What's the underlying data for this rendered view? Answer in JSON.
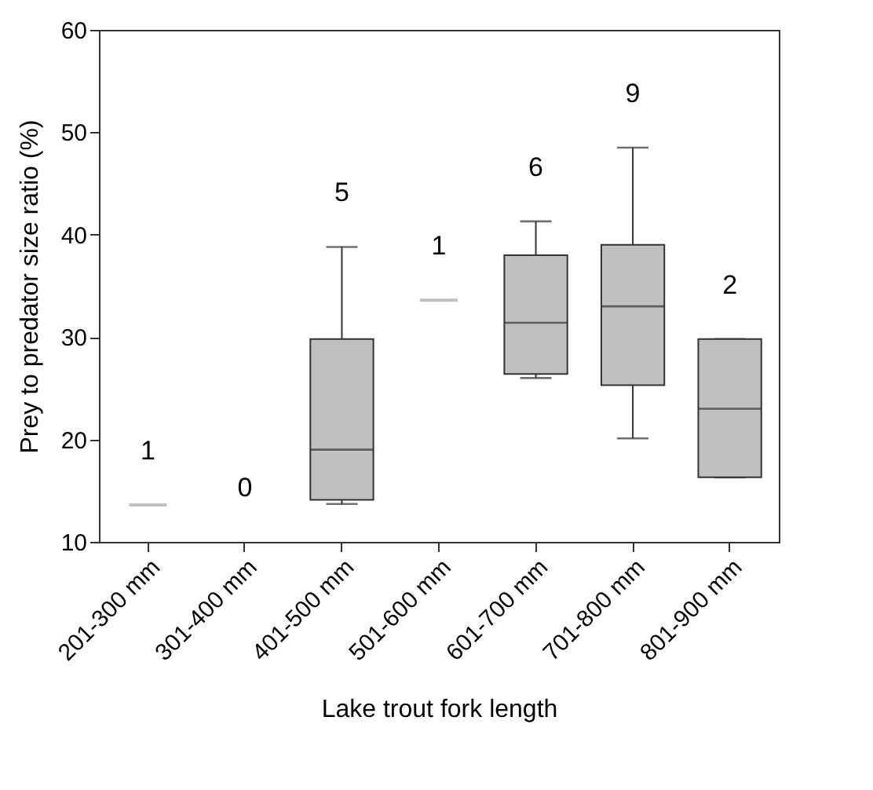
{
  "chart_data": {
    "type": "box",
    "xlabel": "Lake trout fork length",
    "ylabel": "Prey to predator size ratio (%)",
    "categories": [
      "201-300 mm",
      "301-400 mm",
      "401-500 mm",
      "501-600 mm",
      "601-700 mm",
      "701-800 mm",
      "801-900 mm"
    ],
    "boxes": [
      {
        "low": 13.6,
        "q1": 13.6,
        "median": 13.6,
        "q3": 13.6,
        "high": 13.6
      },
      null,
      {
        "low": 13.7,
        "q1": 14.1,
        "median": 19,
        "q3": 29.8,
        "high": 38.8
      },
      {
        "low": 33.6,
        "q1": 33.6,
        "median": 33.6,
        "q3": 33.6,
        "high": 33.6
      },
      {
        "low": 26,
        "q1": 26.4,
        "median": 31.4,
        "q3": 38,
        "high": 41.3
      },
      {
        "low": 20.1,
        "q1": 25.3,
        "median": 33,
        "q3": 39,
        "high": 48.5
      },
      {
        "low": 16.3,
        "q1": 16.3,
        "median": 23,
        "q3": 29.8,
        "high": 29.8
      }
    ],
    "color": "#c0c0c0",
    "ylim": [
      10,
      60
    ],
    "yticks": [
      10,
      20,
      30,
      40,
      50,
      60
    ],
    "grid": false,
    "annotations": [
      "1",
      "0",
      "5",
      "1",
      "6",
      "9",
      "2"
    ]
  }
}
